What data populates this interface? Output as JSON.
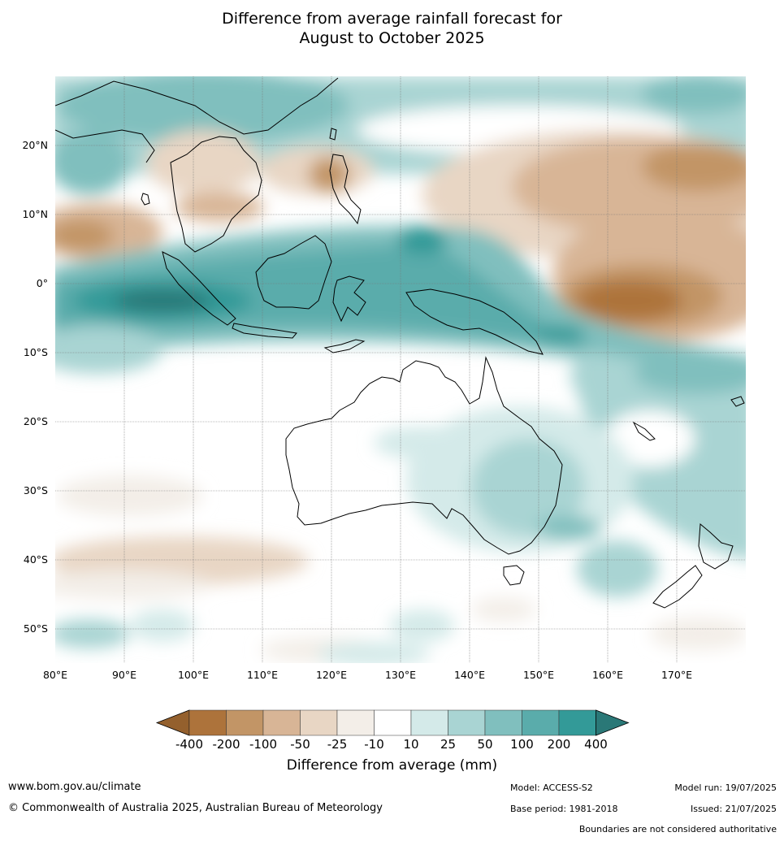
{
  "title": {
    "line1": "Difference from average rainfall forecast for",
    "line2": "August to October 2025"
  },
  "map": {
    "lon_labels": [
      "80°E",
      "90°E",
      "100°E",
      "110°E",
      "120°E",
      "130°E",
      "140°E",
      "150°E",
      "160°E",
      "170°E"
    ],
    "lat_labels": [
      "20°N",
      "10°N",
      "0°",
      "10°S",
      "20°S",
      "30°S",
      "40°S",
      "50°S"
    ]
  },
  "colorbar": {
    "labels": [
      "-400",
      "-200",
      "-100",
      "-50",
      "-25",
      "-10",
      "10",
      "25",
      "50",
      "100",
      "200",
      "400"
    ],
    "colors": [
      "#94602d",
      "#ad733b",
      "#c29566",
      "#d8b596",
      "#e8d6c4",
      "#f3eee8",
      "#ffffff",
      "#d4eae9",
      "#a9d4d3",
      "#80bfbe",
      "#5aacab",
      "#339a98",
      "#2a7877"
    ],
    "title": "Difference from average (mm)"
  },
  "footer": {
    "url": "www.bom.gov.au/climate",
    "copyright": "© Commonwealth of Australia 2025, Australian Bureau of Meteorology",
    "model": "Model: ACCESS-S2",
    "model_run": "Model run: 19/07/2025",
    "base_period": "Base period: 1981-2018",
    "issued": "Issued: 21/07/2025",
    "disclaimer": "Boundaries are not considered authoritative"
  }
}
